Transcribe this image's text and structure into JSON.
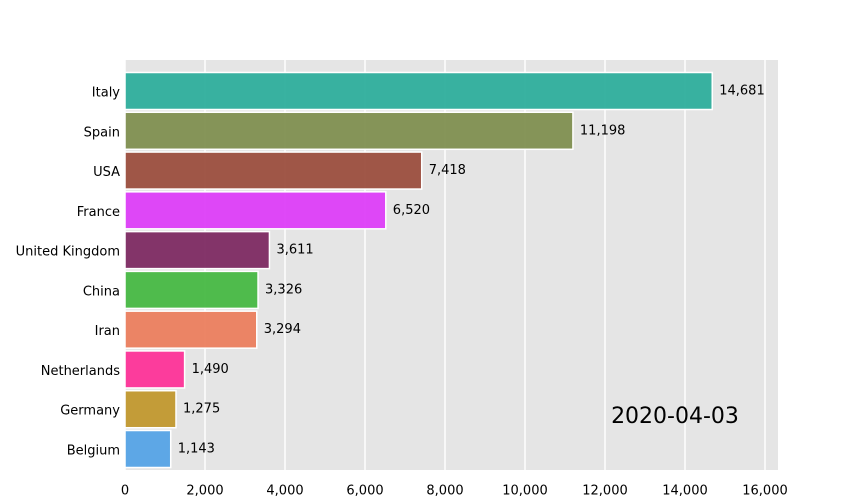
{
  "chart_data": {
    "type": "barh",
    "annotation": "2020-04-03",
    "categories": [
      "Italy",
      "Spain",
      "USA",
      "France",
      "United Kingdom",
      "China",
      "Iran",
      "Netherlands",
      "Germany",
      "Belgium"
    ],
    "values": [
      14681,
      11198,
      7418,
      6520,
      3611,
      3326,
      3294,
      1490,
      1275,
      1143
    ],
    "value_labels": [
      "14,681",
      "11,198",
      "7,418",
      "6,520",
      "3,611",
      "3,326",
      "3,294",
      "1,490",
      "1,275",
      "1,143"
    ],
    "colors": [
      "#2eae9c",
      "#7f8f50",
      "#9b4e3e",
      "#dd3ef8",
      "#7d2a62",
      "#47b843",
      "#eb7e5e",
      "#fd3398",
      "#c1982e",
      "#55a3e6"
    ],
    "xlim": [
      0,
      16325
    ],
    "xticks": [
      0,
      {
        "value": 2000,
        "label": "2,000"
      },
      {
        "value": 4000,
        "label": "4,000"
      },
      {
        "value": 6000,
        "label": "6,000"
      },
      {
        "value": 8000,
        "label": "8,000"
      },
      {
        "value": 10000,
        "label": "10,000"
      },
      {
        "value": 12000,
        "label": "12,000"
      },
      {
        "value": 14000,
        "label": "14,000"
      },
      {
        "value": 16000,
        "label": "16,000"
      }
    ],
    "grid": true
  }
}
